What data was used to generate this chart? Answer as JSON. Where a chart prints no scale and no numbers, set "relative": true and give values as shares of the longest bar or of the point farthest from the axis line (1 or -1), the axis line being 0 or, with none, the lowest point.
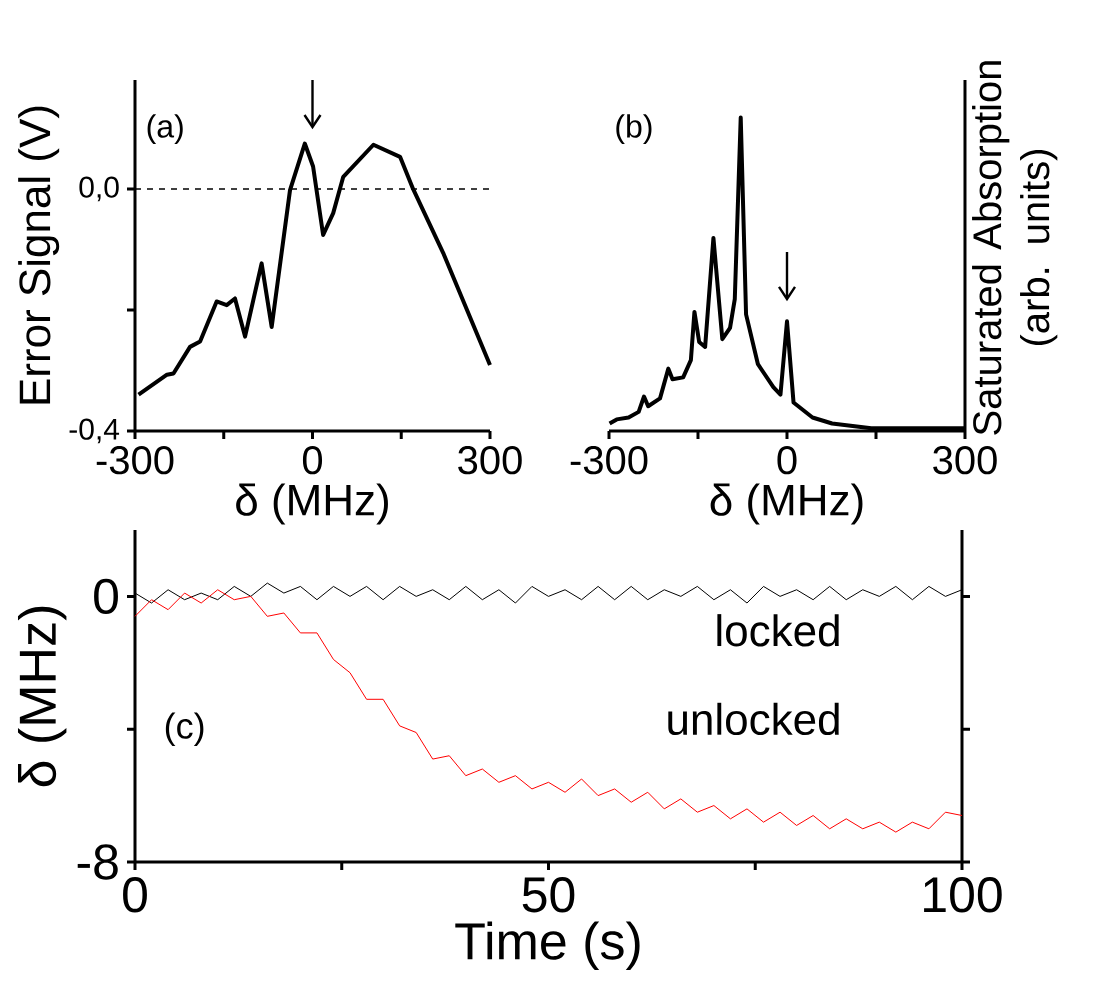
{
  "chart_data": [
    {
      "type": "line",
      "annotations": [
        "(a)"
      ],
      "xlabel": "δ (MHz)",
      "ylabel": "Error Signal (V)",
      "color": "#000000",
      "x": [
        -294,
        -246,
        -235,
        -207,
        -190,
        -162,
        -145,
        -131,
        -114,
        -86,
        -69,
        -38,
        -13,
        1,
        18,
        35,
        52,
        103,
        148,
        170,
        221,
        300
      ],
      "values": [
        -0.34,
        -0.307,
        -0.305,
        -0.261,
        -0.252,
        -0.186,
        -0.192,
        -0.181,
        -0.244,
        -0.123,
        -0.228,
        -0.002,
        0.075,
        0.037,
        -0.076,
        -0.04,
        0.02,
        0.073,
        0.053,
        0.0,
        -0.106,
        -0.291
      ],
      "xlim": [
        -300,
        300
      ],
      "xticks": [
        -300,
        {
          "value": -150,
          "label": null
        },
        0,
        {
          "value": 150,
          "label": null
        },
        300
      ],
      "ylim": [
        -0.4,
        0.18
      ],
      "yticks": [
        {
          "value": -0.4,
          "label": "-0,4"
        },
        {
          "value": -0.2,
          "label": null
        },
        {
          "value": 0,
          "label": "0,0"
        }
      ],
      "ref_lines": [
        {
          "axis": "y",
          "value": 0,
          "line_style": "dashed"
        }
      ]
    },
    {
      "type": "line",
      "annotations": [
        "(b)"
      ],
      "xlabel": "δ (MHz)",
      "ylabel": "Saturated Absorption (arb. units)",
      "color": "#000000",
      "relative": true,
      "x": [
        -299,
        -287,
        -267,
        -250,
        -241,
        -234,
        -214,
        -200,
        -193,
        -175,
        -162,
        -156,
        -148,
        -138,
        -124,
        -109,
        -96,
        -88,
        -78,
        -69,
        -49,
        -23,
        -11,
        0,
        11,
        43,
        76,
        142,
        300
      ],
      "values": [
        0.024,
        0.037,
        0.043,
        0.061,
        0.11,
        0.079,
        0.104,
        0.199,
        0.165,
        0.171,
        0.226,
        0.38,
        0.284,
        0.268,
        0.616,
        0.293,
        0.329,
        0.421,
        1.0,
        0.372,
        0.213,
        0.14,
        0.116,
        0.35,
        0.091,
        0.043,
        0.024,
        0.009,
        0.009
      ],
      "xlim": [
        -300,
        300
      ],
      "xticks": [
        -300,
        {
          "value": -150,
          "label": null
        },
        0,
        {
          "value": 150,
          "label": null
        },
        300
      ]
    },
    {
      "type": "line",
      "annotations": [
        "(c)"
      ],
      "xlabel": "Time (s)",
      "ylabel": "δ (MHz)",
      "xlim": [
        0,
        100
      ],
      "xticks": [
        0,
        {
          "value": 25,
          "label": null
        },
        50,
        {
          "value": 75,
          "label": null
        },
        100
      ],
      "ylim": [
        -8,
        2
      ],
      "yticks": [
        -8,
        {
          "value": -4,
          "label": null
        },
        0
      ],
      "series": [
        {
          "name": "locked",
          "color": "#000000",
          "x": [
            0,
            2,
            4,
            6,
            8,
            10,
            12,
            14,
            16,
            18,
            20,
            22,
            24,
            26,
            28,
            30,
            32,
            34,
            36,
            38,
            40,
            42,
            44,
            46,
            48,
            50,
            52,
            54,
            56,
            58,
            60,
            62,
            64,
            66,
            68,
            70,
            72,
            74,
            76,
            78,
            80,
            82,
            84,
            86,
            88,
            90,
            92,
            94,
            96,
            98,
            100
          ],
          "values": [
            0.1,
            -0.2,
            0.2,
            -0.1,
            0.1,
            -0.1,
            0.3,
            0.0,
            0.4,
            0.1,
            0.3,
            -0.1,
            0.3,
            0.0,
            0.3,
            -0.1,
            0.3,
            0.0,
            0.2,
            -0.1,
            0.3,
            -0.1,
            0.2,
            -0.2,
            0.3,
            0.0,
            0.2,
            -0.1,
            0.3,
            -0.1,
            0.3,
            -0.1,
            0.2,
            0.0,
            0.3,
            -0.1,
            0.2,
            -0.2,
            0.3,
            0.0,
            0.2,
            -0.1,
            0.3,
            -0.1,
            0.2,
            0.0,
            0.3,
            -0.1,
            0.3,
            0.0,
            0.2
          ]
        },
        {
          "name": "unlocked",
          "color": "#ff0000",
          "x": [
            0,
            2,
            4,
            6,
            8,
            10,
            12,
            14,
            16,
            18,
            20,
            22,
            24,
            26,
            28,
            30,
            32,
            34,
            36,
            38,
            40,
            42,
            44,
            46,
            48,
            50,
            52,
            54,
            56,
            58,
            60,
            62,
            64,
            66,
            68,
            70,
            72,
            74,
            76,
            78,
            80,
            82,
            84,
            86,
            88,
            90,
            92,
            94,
            96,
            98,
            100
          ],
          "values": [
            -0.6,
            -0.1,
            -0.4,
            0.1,
            -0.2,
            0.2,
            -0.1,
            0.0,
            -0.6,
            -0.5,
            -1.1,
            -1.1,
            -1.9,
            -2.3,
            -3.1,
            -3.1,
            -3.9,
            -4.1,
            -4.9,
            -4.8,
            -5.4,
            -5.2,
            -5.6,
            -5.4,
            -5.8,
            -5.6,
            -5.9,
            -5.5,
            -6.0,
            -5.8,
            -6.2,
            -5.9,
            -6.4,
            -6.1,
            -6.5,
            -6.3,
            -6.7,
            -6.4,
            -6.8,
            -6.5,
            -6.9,
            -6.6,
            -7.0,
            -6.7,
            -7.0,
            -6.8,
            -7.1,
            -6.8,
            -7.0,
            -6.5,
            -6.6
          ]
        }
      ]
    }
  ]
}
